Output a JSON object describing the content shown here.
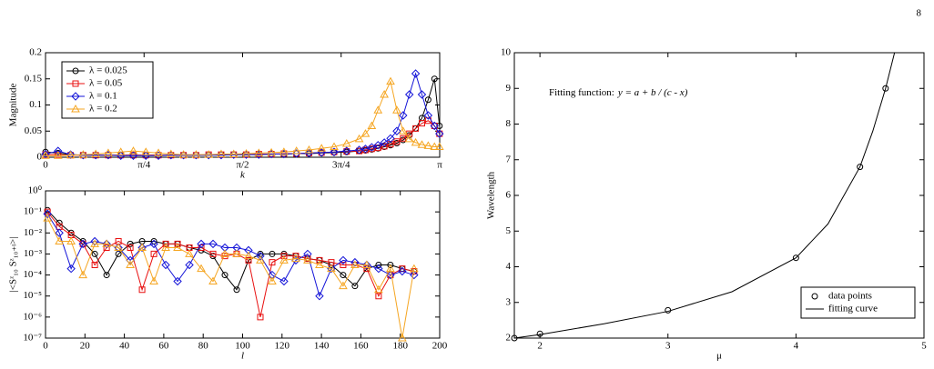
{
  "page_number": "8",
  "chart_data": [
    {
      "type": "line",
      "x_label": "k",
      "y_label": "Magnitude",
      "legend": "upper left",
      "xlim": [
        0,
        3.1416
      ],
      "xticks": [
        0,
        {
          "value": 0.7854,
          "label": "π/4"
        },
        {
          "value": 1.5708,
          "label": "π/2"
        },
        {
          "value": 2.3562,
          "label": "3π/4"
        },
        {
          "value": 3.1416,
          "label": "π"
        }
      ],
      "ylim": [
        0,
        0.2
      ],
      "yticks": [
        0,
        0.05,
        0.1,
        0.15,
        0.2
      ],
      "x": [
        0,
        0.1,
        0.2,
        0.3,
        0.4,
        0.5,
        0.6,
        0.7,
        0.8,
        0.9,
        1.0,
        1.1,
        1.2,
        1.3,
        1.4,
        1.5,
        1.6,
        1.7,
        1.8,
        1.9,
        2.0,
        2.1,
        2.2,
        2.3,
        2.4,
        2.5,
        2.55,
        2.6,
        2.65,
        2.7,
        2.75,
        2.8,
        2.85,
        2.9,
        2.95,
        3.0,
        3.05,
        3.1,
        3.14
      ],
      "series": [
        {
          "name": "λ = 0.025",
          "color": "#000000",
          "marker": "circle",
          "line": true,
          "values": [
            0.01,
            0.008,
            0.005,
            0.004,
            0.004,
            0.004,
            0.004,
            0.004,
            0.004,
            0.004,
            0.004,
            0.004,
            0.004,
            0.004,
            0.005,
            0.005,
            0.005,
            0.005,
            0.006,
            0.006,
            0.007,
            0.007,
            0.008,
            0.009,
            0.01,
            0.012,
            0.013,
            0.015,
            0.017,
            0.02,
            0.023,
            0.027,
            0.033,
            0.042,
            0.055,
            0.075,
            0.11,
            0.15,
            0.06
          ]
        },
        {
          "name": "λ = 0.05",
          "color": "#e81010",
          "marker": "square",
          "line": true,
          "values": [
            0.005,
            0.005,
            0.004,
            0.004,
            0.004,
            0.004,
            0.004,
            0.004,
            0.004,
            0.004,
            0.004,
            0.004,
            0.004,
            0.005,
            0.005,
            0.005,
            0.005,
            0.006,
            0.006,
            0.007,
            0.007,
            0.008,
            0.009,
            0.01,
            0.011,
            0.012,
            0.014,
            0.016,
            0.018,
            0.021,
            0.025,
            0.03,
            0.036,
            0.045,
            0.055,
            0.065,
            0.07,
            0.06,
            0.045
          ]
        },
        {
          "name": "λ = 0.1",
          "color": "#1414d8",
          "marker": "diamond",
          "line": true,
          "values": [
            0.006,
            0.012,
            0.005,
            0.004,
            0.004,
            0.004,
            0.003,
            0.003,
            0.003,
            0.003,
            0.004,
            0.004,
            0.004,
            0.004,
            0.004,
            0.005,
            0.005,
            0.005,
            0.006,
            0.006,
            0.007,
            0.008,
            0.009,
            0.01,
            0.012,
            0.014,
            0.016,
            0.019,
            0.023,
            0.028,
            0.036,
            0.05,
            0.08,
            0.12,
            0.16,
            0.12,
            0.08,
            0.06,
            0.045
          ]
        },
        {
          "name": "λ = 0.2",
          "color": "#f5a623",
          "marker": "triangle",
          "line": true,
          "values": [
            0.003,
            0.003,
            0.004,
            0.005,
            0.006,
            0.008,
            0.01,
            0.012,
            0.01,
            0.008,
            0.006,
            0.005,
            0.005,
            0.005,
            0.006,
            0.006,
            0.007,
            0.008,
            0.009,
            0.01,
            0.012,
            0.014,
            0.017,
            0.02,
            0.026,
            0.035,
            0.045,
            0.06,
            0.09,
            0.12,
            0.145,
            0.09,
            0.05,
            0.035,
            0.028,
            0.024,
            0.022,
            0.02,
            0.02
          ]
        }
      ]
    },
    {
      "type": "line",
      "x_label": "l",
      "y_label": "|<Sᶻ₁₀ Sᶻ₁₀₊ₗ>|",
      "log_y": true,
      "xlim": [
        0,
        200
      ],
      "xticks": [
        0,
        20,
        40,
        60,
        80,
        100,
        120,
        140,
        160,
        180,
        200
      ],
      "ylim": [
        1e-07,
        1
      ],
      "yticks": [
        {
          "value": 1e-07,
          "label": "10⁻⁷"
        },
        {
          "value": 1e-06,
          "label": "10⁻⁶"
        },
        {
          "value": 1e-05,
          "label": "10⁻⁵"
        },
        {
          "value": 0.0001,
          "label": "10⁻⁴"
        },
        {
          "value": 0.001,
          "label": "10⁻³"
        },
        {
          "value": 0.01,
          "label": "10⁻²"
        },
        {
          "value": 0.1,
          "label": "10⁻¹"
        },
        {
          "value": 1,
          "label": "10⁰"
        }
      ],
      "x": [
        1,
        7,
        13,
        19,
        25,
        31,
        37,
        43,
        49,
        55,
        61,
        67,
        73,
        79,
        85,
        91,
        97,
        103,
        109,
        115,
        121,
        127,
        133,
        139,
        145,
        151,
        157,
        163,
        169,
        175,
        181,
        187
      ],
      "series": [
        {
          "color": "#000000",
          "marker": "circle",
          "line": true,
          "values": [
            0.12,
            0.03,
            0.01,
            0.004,
            0.001,
            0.0001,
            0.001,
            0.003,
            0.004,
            0.004,
            0.003,
            0.003,
            0.002,
            0.0015,
            0.0008,
            0.0001,
            2e-05,
            0.0005,
            0.001,
            0.001,
            0.001,
            0.0008,
            0.0006,
            0.0005,
            0.0003,
            0.0001,
            3e-05,
            0.0002,
            0.0003,
            0.0003,
            0.0002,
            0.00015
          ]
        },
        {
          "color": "#e81010",
          "marker": "square",
          "line": true,
          "values": [
            0.1,
            0.02,
            0.008,
            0.003,
            0.0003,
            0.002,
            0.004,
            0.002,
            2e-05,
            0.001,
            0.003,
            0.003,
            0.002,
            0.002,
            0.001,
            0.0008,
            0.001,
            0.0005,
            1e-06,
            0.0004,
            0.0008,
            0.0008,
            0.0006,
            0.0005,
            0.0004,
            0.0003,
            0.0003,
            0.0002,
            1e-05,
            0.0001,
            0.0002,
            0.00015
          ]
        },
        {
          "color": "#1414d8",
          "marker": "diamond",
          "line": true,
          "values": [
            0.08,
            0.01,
            0.0002,
            0.003,
            0.004,
            0.003,
            0.002,
            0.0005,
            0.002,
            0.003,
            0.0003,
            5e-05,
            0.0003,
            0.003,
            0.003,
            0.002,
            0.002,
            0.0015,
            0.0008,
            0.0001,
            5e-05,
            0.0005,
            0.001,
            1e-05,
            0.0002,
            0.0005,
            0.0004,
            0.0003,
            0.0002,
            0.0001,
            0.00015,
            0.0001
          ]
        },
        {
          "color": "#f5a623",
          "marker": "triangle",
          "line": true,
          "values": [
            0.05,
            0.004,
            0.004,
            0.0001,
            0.003,
            0.003,
            0.002,
            0.0003,
            0.002,
            5e-05,
            0.002,
            0.002,
            0.001,
            0.0002,
            5e-05,
            0.001,
            0.001,
            0.0008,
            0.0005,
            5e-05,
            0.0005,
            0.0006,
            0.0005,
            0.0003,
            0.0002,
            3e-05,
            0.0003,
            0.0003,
            2e-05,
            0.0002,
            1e-07,
            0.0002
          ]
        }
      ]
    },
    {
      "type": "scatter",
      "x_label": "μ",
      "y_label": "Wavelength",
      "legend": "lower right",
      "annotation": "Fitting function:",
      "annotation_formula": "y = a + b / (c - x)",
      "xlim": [
        1.8,
        5
      ],
      "xticks": [
        2,
        3,
        4,
        5
      ],
      "ylim": [
        2,
        10
      ],
      "yticks": [
        2,
        3,
        4,
        5,
        6,
        7,
        8,
        9,
        10
      ],
      "series": [
        {
          "name": "data points",
          "color": "#000000",
          "marker": "circle",
          "line": false,
          "x": [
            1.8,
            2,
            3,
            4,
            4.5,
            4.7
          ],
          "values": [
            2.0,
            2.12,
            2.78,
            4.25,
            6.8,
            9.0
          ]
        },
        {
          "name": "fitting curve",
          "color": "#000000",
          "line": true,
          "x": [
            1.8,
            2,
            2.5,
            3,
            3.5,
            4,
            4.25,
            4.5,
            4.6,
            4.7,
            4.77
          ],
          "values": [
            2.0,
            2.1,
            2.4,
            2.75,
            3.3,
            4.25,
            5.2,
            6.8,
            7.8,
            9.0,
            10.0
          ]
        }
      ]
    }
  ]
}
